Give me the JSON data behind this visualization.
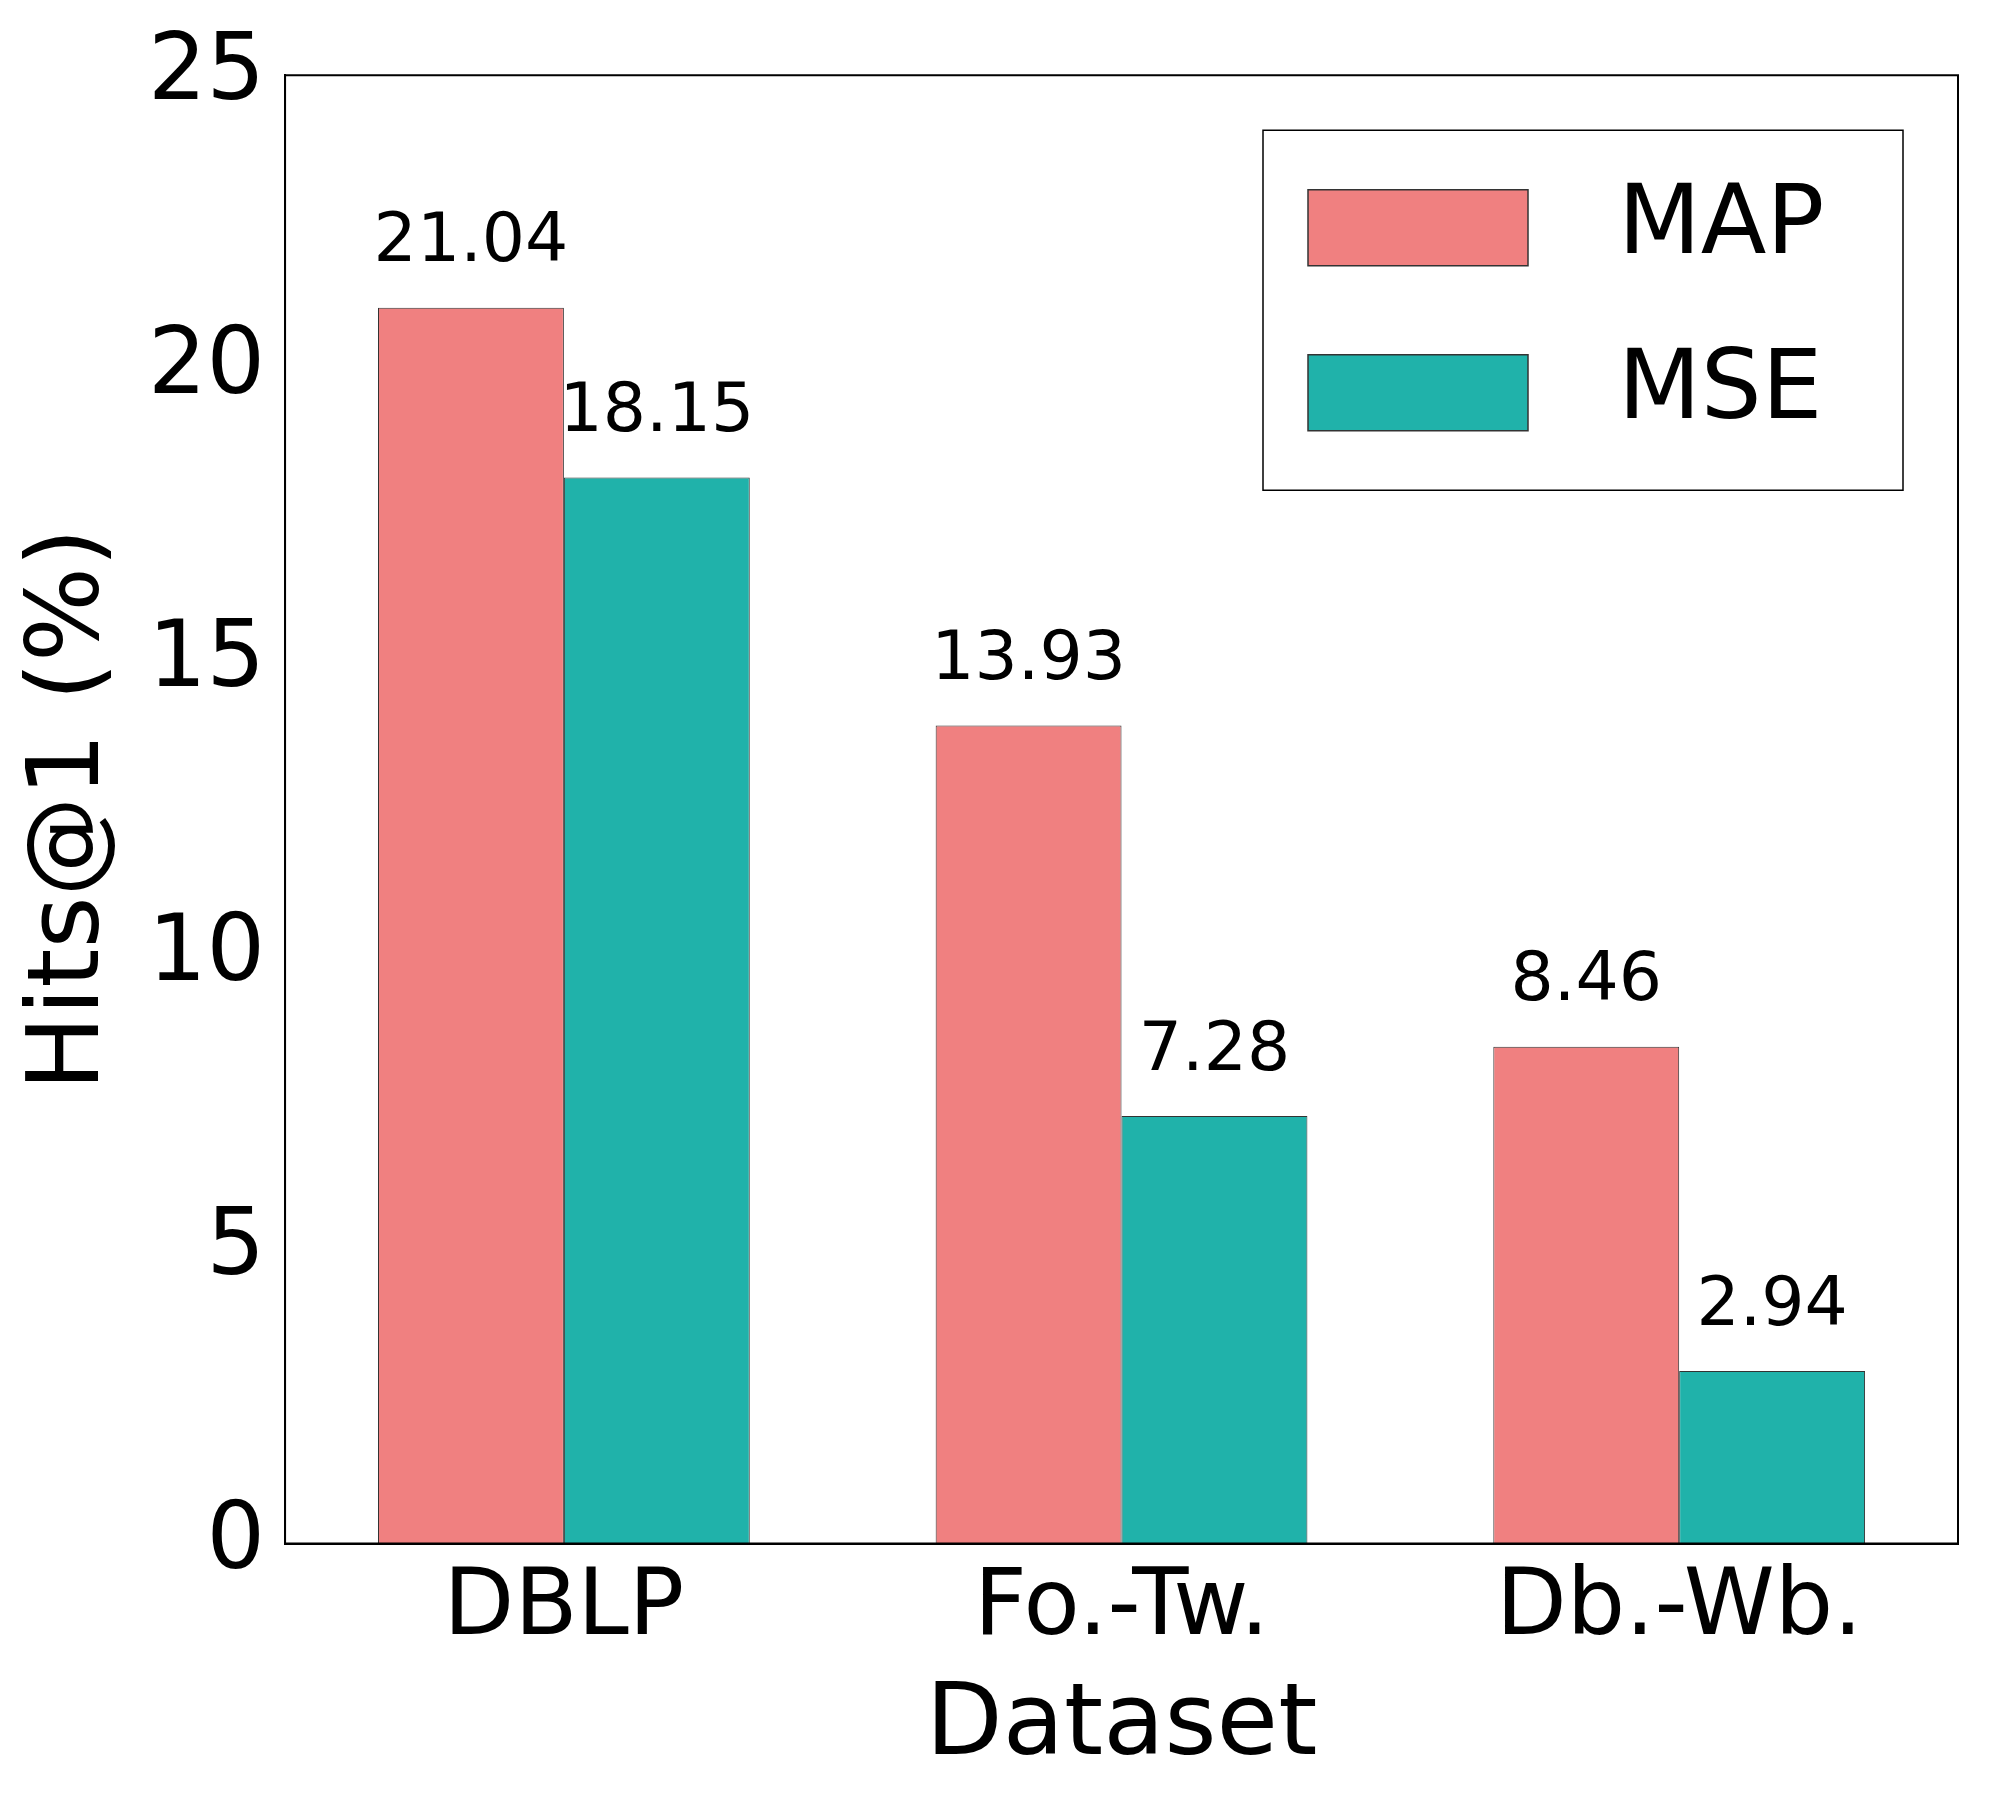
{
  "chart_data": {
    "type": "bar",
    "xlabel": "Dataset",
    "ylabel": "Hits@1 (%)",
    "categories": [
      "DBLP",
      "Fo.-Tw.",
      "Db.-Wb."
    ],
    "series": [
      {
        "name": "MAP",
        "color": "#f08080",
        "values": [
          21.04,
          13.93,
          8.46
        ]
      },
      {
        "name": "MSE",
        "color": "#20b2aa",
        "values": [
          18.15,
          7.28,
          2.94
        ]
      }
    ],
    "ylim": [
      0,
      25
    ],
    "yticks": [
      0,
      5,
      10,
      15,
      20,
      25
    ],
    "grid": false,
    "legend": "top right",
    "data_labels": true
  }
}
